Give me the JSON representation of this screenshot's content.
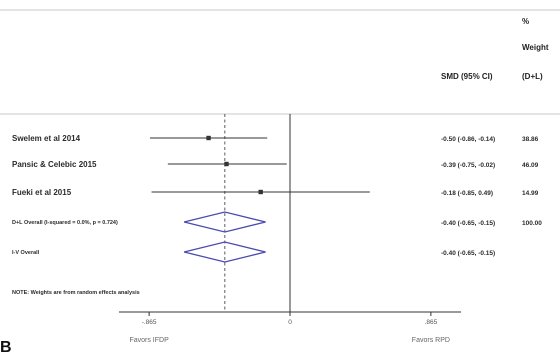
{
  "chart_data": {
    "type": "forest",
    "panel_label": "B",
    "header": {
      "weight_line1": "%",
      "weight_line2": "Weight",
      "weight_line3": "(D+L)",
      "smd": "SMD (95% CI)"
    },
    "studies": [
      {
        "label": "Swelem et al 2014",
        "smd": -0.5,
        "lower": -0.86,
        "upper": -0.14,
        "ci_text": "-0.50 (-0.86, -0.14)",
        "weight_text": "38.86"
      },
      {
        "label": "Pansic & Celebic 2015",
        "smd": -0.39,
        "lower": -0.75,
        "upper": -0.02,
        "ci_text": "-0.39 (-0.75, -0.02)",
        "weight_text": "46.09"
      },
      {
        "label": "Fueki et al 2015",
        "smd": -0.18,
        "lower": -0.85,
        "upper": 0.49,
        "ci_text": "-0.18 (-0.85, 0.49)",
        "weight_text": "14.99"
      }
    ],
    "overall": [
      {
        "label": "D+L Overall  (I-squared = 0.0%, p = 0.724)",
        "smd": -0.4,
        "lower": -0.65,
        "upper": -0.15,
        "ci_text": "-0.40 (-0.65, -0.15)",
        "weight_text": "100.00"
      },
      {
        "label": "I-V Overall",
        "smd": -0.4,
        "lower": -0.65,
        "upper": -0.15,
        "ci_text": "-0.40 (-0.65, -0.15)",
        "weight_text": ""
      }
    ],
    "note": "NOTE: Weights are from random effects analysis",
    "x_ticks": [
      {
        "value": -0.865,
        "label": "-.865"
      },
      {
        "value": 0,
        "label": "0"
      },
      {
        "value": 0.865,
        "label": ".865"
      }
    ],
    "xlim": [
      -1.05,
      1.05
    ],
    "reference_line": 0,
    "favors_left": "Favors IFDP",
    "favors_right": "Favors RPD",
    "colors": {
      "diamond": "#4a4ab0",
      "line": "#333333",
      "divider": "#c8c8c8"
    }
  }
}
